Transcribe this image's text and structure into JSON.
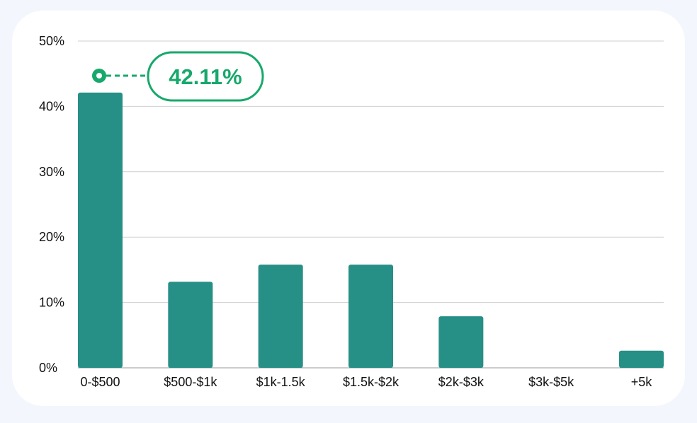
{
  "colors": {
    "bar": "#268f86",
    "accent": "#17a86b",
    "grid": "#cfcfcf",
    "text": "#111111",
    "card": "#ffffff",
    "page": "#f4f6fd"
  },
  "chart_data": {
    "type": "bar",
    "title": "",
    "xlabel": "",
    "ylabel": "",
    "categories": [
      "0-$500",
      "$500-$1k",
      "$1k-1.5k",
      "$1.5k-$2k",
      "$2k-$3k",
      "$3k-$5k",
      "+5k"
    ],
    "values": [
      42.11,
      13.16,
      15.79,
      15.79,
      7.89,
      0,
      2.63
    ],
    "ylim": [
      0,
      50
    ],
    "yticks": [
      0,
      10,
      20,
      30,
      40,
      50
    ],
    "ytick_labels": [
      "0%",
      "10%",
      "20%",
      "30%",
      "40%",
      "50%"
    ],
    "grid": true,
    "legend": "none",
    "annotation": {
      "category": "0-$500",
      "value": 42.11,
      "text": "42.11%"
    }
  }
}
